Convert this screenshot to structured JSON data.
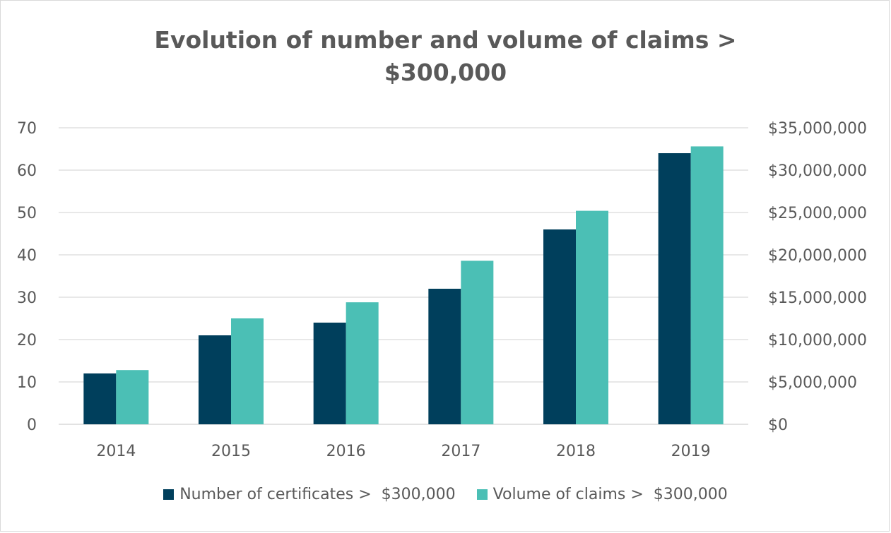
{
  "chart_data": {
    "type": "bar",
    "title": "Evolution of number and volume of claims > $300,000",
    "categories": [
      "2014",
      "2015",
      "2016",
      "2017",
      "2018",
      "2019"
    ],
    "series": [
      {
        "name": "Number of certificates >  $300,000",
        "axis": "left",
        "color": "#003f5c",
        "values": [
          12,
          21,
          24,
          32,
          46,
          64
        ]
      },
      {
        "name": "Volume of claims >  $300,000",
        "axis": "right",
        "color": "#4bbfb5",
        "values": [
          6400000,
          12500000,
          14400000,
          19300000,
          25200000,
          32800000
        ]
      }
    ],
    "y_left": {
      "ylim": [
        0,
        70
      ],
      "ticks": [
        0,
        10,
        20,
        30,
        40,
        50,
        60,
        70
      ],
      "tick_labels": [
        "0",
        "10",
        "20",
        "30",
        "40",
        "50",
        "60",
        "70"
      ]
    },
    "y_right": {
      "ylim": [
        0,
        35000000
      ],
      "ticks": [
        0,
        5000000,
        10000000,
        15000000,
        20000000,
        25000000,
        30000000,
        35000000
      ],
      "tick_labels": [
        "$0",
        "$5,000,000",
        "$10,000,000",
        "$15,000,000",
        "$20,000,000",
        "$25,000,000",
        "$30,000,000",
        "$35,000,000"
      ]
    },
    "grid": true,
    "legend_position": "bottom"
  }
}
